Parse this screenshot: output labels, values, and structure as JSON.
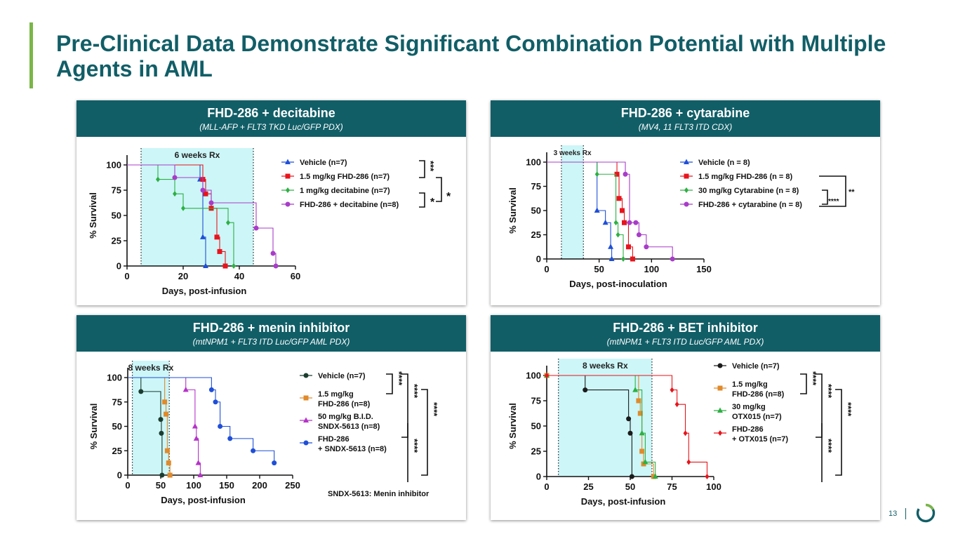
{
  "page": {
    "title": "Pre-Clinical Data Demonstrate Significant Combination Potential with Multiple Agents in AML",
    "page_number": "13",
    "accent_color": "#7ab648",
    "header_color": "#115e67",
    "logo_icon": "circle-logo-icon"
  },
  "panels": [
    {
      "title": "FHD-286 + decitabine",
      "subtitle": "(MLL-AFP + FLT3 TKD Luc/GFP PDX)"
    },
    {
      "title": "FHD-286 + cytarabine",
      "subtitle": "(MV4, 11 FLT3 ITD CDX)"
    },
    {
      "title": "FHD-286 + menin inhibitor",
      "subtitle": "(mtNPM1 + FLT3 ITD Luc/GFP AML PDX)"
    },
    {
      "title": "FHD-286 + BET inhibitor",
      "subtitle": "(mtNPM1 + FLT3 ITD Luc/GFP AML PDX)"
    }
  ],
  "chart_data": [
    {
      "type": "line",
      "xlabel": "Days, post-infusion",
      "ylabel": "% Survival",
      "xlim": [
        0,
        60
      ],
      "ylim": [
        0,
        100
      ],
      "xticks": [
        0,
        20,
        40,
        60
      ],
      "yticks": [
        0,
        25,
        50,
        75,
        100
      ],
      "treatment_window": {
        "label": "6 weeks Rx",
        "start": 5,
        "end": 45
      },
      "series": [
        {
          "name": "Vehicle (n=7)",
          "color": "#1f4fd8",
          "marker": "triangle",
          "x": [
            0,
            26,
            27,
            28
          ],
          "y": [
            100,
            85.7,
            28.6,
            0
          ]
        },
        {
          "name": "1.5 mg/kg FHD-286 (n=7)",
          "color": "#e8141c",
          "marker": "square",
          "x": [
            0,
            27,
            28,
            30,
            32,
            33,
            35
          ],
          "y": [
            100,
            85.7,
            71.4,
            57.1,
            28.6,
            14.3,
            0
          ]
        },
        {
          "name": "1 mg/kg decitabine (n=7)",
          "color": "#2db043",
          "marker": "diamond",
          "x": [
            0,
            11,
            17,
            20,
            36,
            38
          ],
          "y": [
            100,
            85.7,
            71.4,
            57.1,
            42.9,
            0
          ]
        },
        {
          "name": "FHD-286 + decitabine (n=8)",
          "color": "#a83cc8",
          "marker": "circle",
          "x": [
            0,
            17,
            27,
            30,
            46,
            52,
            53
          ],
          "y": [
            100,
            87.5,
            75,
            62.5,
            37.5,
            12.5,
            0
          ]
        }
      ],
      "annotations": [
        "***",
        "*",
        "*"
      ]
    },
    {
      "type": "line",
      "xlabel": "Days, post-inoculation",
      "ylabel": "% Survival",
      "xlim": [
        0,
        150
      ],
      "ylim": [
        0,
        100
      ],
      "xticks": [
        0,
        50,
        100,
        150
      ],
      "yticks": [
        0,
        25,
        50,
        75,
        100
      ],
      "treatment_window": {
        "label": "3 weeks Rx",
        "start": 14,
        "end": 35
      },
      "series": [
        {
          "name": "Vehicle (n = 8)",
          "color": "#1f4fd8",
          "marker": "triangle",
          "x": [
            0,
            48,
            56,
            61,
            62
          ],
          "y": [
            100,
            50,
            37.5,
            12.5,
            0
          ]
        },
        {
          "name": "1.5 mg/kg FHD-286 (n = 8)",
          "color": "#e8141c",
          "marker": "square",
          "x": [
            0,
            67,
            69,
            72,
            74,
            78,
            82
          ],
          "y": [
            100,
            87.5,
            62.5,
            50,
            37.5,
            12.5,
            0
          ]
        },
        {
          "name": "30 mg/kg Cytarabine (n = 8)",
          "color": "#2db043",
          "marker": "diamond",
          "x": [
            0,
            48,
            66,
            68,
            73
          ],
          "y": [
            100,
            87.5,
            37.5,
            25,
            0
          ]
        },
        {
          "name": "FHD-286 + cytarabine (n = 8)",
          "color": "#a83cc8",
          "marker": "circle",
          "x": [
            0,
            75,
            79,
            85,
            88,
            95,
            120
          ],
          "y": [
            100,
            87.5,
            37.5,
            37.5,
            25,
            12.5,
            0
          ]
        }
      ],
      "annotations": [
        "**",
        "****"
      ]
    },
    {
      "type": "line",
      "xlabel": "Days, post-infusion",
      "ylabel": "% Survival",
      "xlim": [
        0,
        250
      ],
      "ylim": [
        0,
        100
      ],
      "xticks": [
        0,
        50,
        100,
        150,
        200,
        250
      ],
      "yticks": [
        0,
        25,
        50,
        75,
        100
      ],
      "treatment_window": {
        "label": "8 weeks  Rx",
        "start": 7,
        "end": 63
      },
      "note": "SNDX-5613: Menin inhibitor",
      "series": [
        {
          "name": "Vehicle (n=7)",
          "color": "#1b3d2f",
          "marker": "circle",
          "x": [
            0,
            20,
            50,
            51,
            52
          ],
          "y": [
            100,
            85.7,
            57.1,
            42.9,
            0
          ]
        },
        {
          "name": "1.5 mg/kg FHD-286 (n=8)",
          "color": "#e08a2c",
          "marker": "square",
          "x": [
            0,
            56,
            58,
            60,
            62,
            64
          ],
          "y": [
            100,
            75,
            62.5,
            25,
            12.5,
            0
          ]
        },
        {
          "name": "50 mg/kg B.I.D. SNDX-5613 (n=8)",
          "color": "#b533c8",
          "marker": "triangle",
          "x": [
            0,
            88,
            102,
            104,
            107,
            110
          ],
          "y": [
            100,
            87.5,
            50,
            37.5,
            12.5,
            0
          ]
        },
        {
          "name": "FHD-286 + SNDX-5613 (n=8)",
          "color": "#1f4fd8",
          "marker": "circle",
          "x": [
            0,
            127,
            133,
            140,
            155,
            190,
            222
          ],
          "y": [
            100,
            87.5,
            75,
            50,
            37.5,
            25,
            12.5
          ]
        }
      ],
      "legend_lines": [
        [
          "Vehicle (n=7)"
        ],
        [
          "1.5 mg/kg",
          "FHD-286 (n=8)"
        ],
        [
          "50 mg/kg B.I.D.",
          "SNDX-5613 (n=8)"
        ],
        [
          "FHD-286",
          "+ SNDX-5613 (n=8)"
        ]
      ],
      "annotations": [
        "****",
        "****",
        "****",
        "****"
      ]
    },
    {
      "type": "line",
      "xlabel": "Days, post-infusion",
      "ylabel": "% Survival",
      "xlim": [
        0,
        100
      ],
      "ylim": [
        0,
        100
      ],
      "xticks": [
        0,
        25,
        50,
        75,
        100
      ],
      "yticks": [
        0,
        25,
        50,
        75,
        100
      ],
      "treatment_window": {
        "label": "8 weeks  Rx",
        "start": 7,
        "end": 63
      },
      "series": [
        {
          "name": "Vehicle (n=7)",
          "color": "#1b1b1b",
          "marker": "circle",
          "x": [
            0,
            23,
            49,
            50,
            51
          ],
          "y": [
            100,
            85.7,
            57.1,
            42.9,
            0
          ]
        },
        {
          "name": "1.5 mg/kg FHD-286 (n=8)",
          "color": "#e08a2c",
          "marker": "square",
          "x": [
            0,
            55,
            56,
            57,
            58,
            64
          ],
          "y": [
            100,
            75,
            62.5,
            25,
            12.5,
            0
          ]
        },
        {
          "name": "30 mg/kg OTX015 (n=7)",
          "color": "#2db043",
          "marker": "triangle",
          "x": [
            0,
            53,
            57,
            59,
            65
          ],
          "y": [
            100,
            85.7,
            42.9,
            14.3,
            0
          ]
        },
        {
          "name": "FHD-286 + OTX015 (n=7)",
          "color": "#e8141c",
          "marker": "diamond",
          "x": [
            0,
            75,
            78,
            83,
            85,
            96
          ],
          "y": [
            100,
            85.7,
            71.4,
            42.9,
            14.3,
            0
          ]
        }
      ],
      "legend_lines": [
        [
          "Vehicle (n=7)"
        ],
        [
          "1.5 mg/kg",
          "FHD-286 (n=8)"
        ],
        [
          "30 mg/kg",
          "OTX015 (n=7)"
        ],
        [
          "FHD-286",
          "+ OTX015 (n=7)"
        ]
      ],
      "annotations": [
        "****",
        "****",
        "****",
        "****"
      ]
    }
  ]
}
